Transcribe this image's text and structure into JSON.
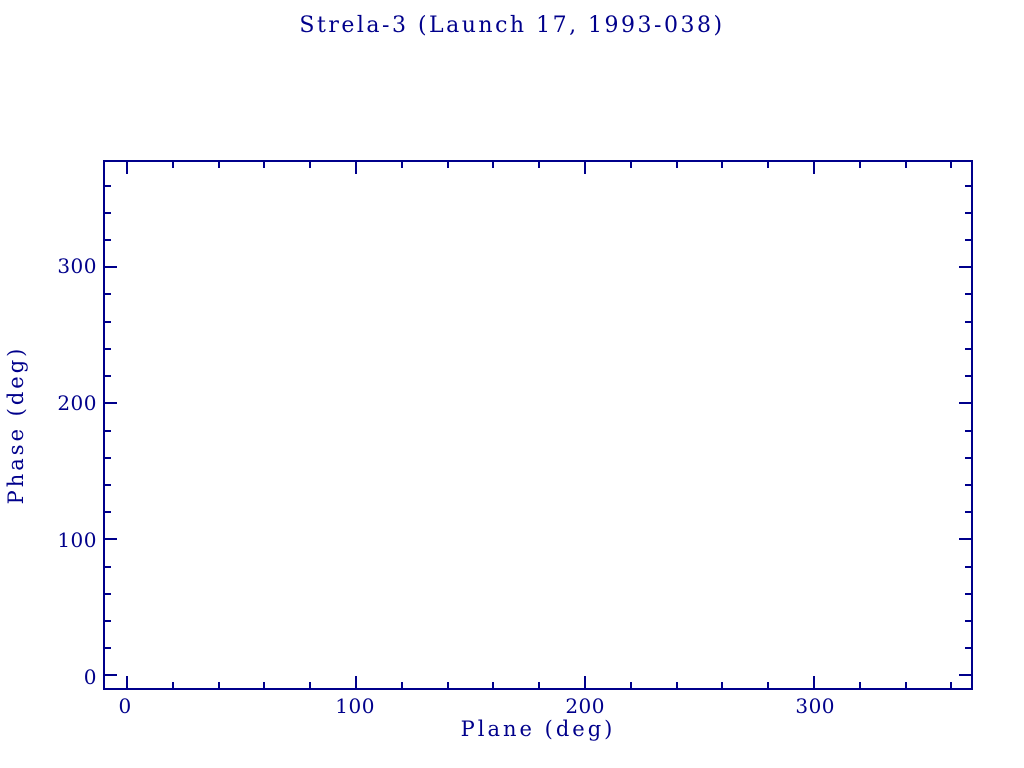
{
  "figure": {
    "title": "Strela-3 (Launch 17, 1993-038)",
    "x_axis_label": "Plane (deg)",
    "y_axis_label": "Phase (deg)",
    "colors": {
      "plot_color": "#00008b",
      "background": "#ffffff"
    }
  },
  "chart_data": {
    "type": "scatter",
    "title": "Strela-3 (Launch 17, 1993-038)",
    "xlabel": "Plane (deg)",
    "ylabel": "Phase (deg)",
    "x_axis": {
      "range": [
        -9.6,
        368.6
      ],
      "major_ticks": [
        0,
        100,
        200,
        300
      ],
      "major_tick_labels": [
        "0",
        "100",
        "200",
        "300"
      ],
      "minor_tick_step": 20
    },
    "y_axis": {
      "range": [
        -9.2,
        377.3
      ],
      "major_ticks": [
        0,
        100,
        200,
        300
      ],
      "major_tick_labels": [
        "0",
        "100",
        "200",
        "300"
      ],
      "minor_tick_step": 20
    },
    "grid": false,
    "legend": false,
    "points": [],
    "series": []
  }
}
